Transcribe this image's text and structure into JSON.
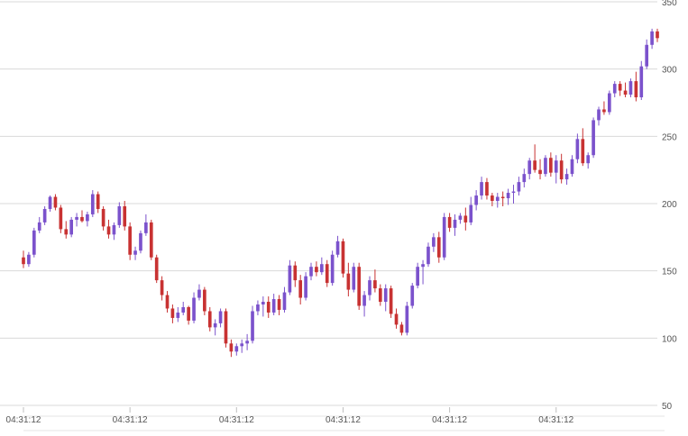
{
  "chart_data": {
    "type": "candlestick",
    "title": "",
    "xlabel": "",
    "ylabel": "",
    "ylim": [
      50,
      350
    ],
    "y_ticks": [
      50,
      100,
      150,
      200,
      250,
      300,
      350
    ],
    "x_tick_labels": [
      "04:31:12",
      "04:31:12",
      "04:31:12",
      "04:31:12",
      "04:31:12",
      "04:31:12"
    ],
    "x_tick_indices": [
      0,
      20,
      40,
      60,
      80,
      100
    ],
    "grid": "horizontal",
    "legend": "none",
    "colors": {
      "up": "#7b52cc",
      "down": "#c83232",
      "grid": "#d9d9d9",
      "axis": "#bfbfbf"
    },
    "series": [
      {
        "candles": [
          [
            160,
            165,
            152,
            155
          ],
          [
            155,
            164,
            153,
            162
          ],
          [
            162,
            182,
            160,
            180
          ],
          [
            180,
            190,
            178,
            186
          ],
          [
            186,
            198,
            184,
            196
          ],
          [
            196,
            206,
            194,
            205
          ],
          [
            205,
            207,
            195,
            197
          ],
          [
            197,
            199,
            178,
            181
          ],
          [
            181,
            187,
            174,
            177
          ],
          [
            177,
            190,
            175,
            188
          ],
          [
            188,
            193,
            183,
            190
          ],
          [
            190,
            195,
            186,
            187
          ],
          [
            187,
            194,
            183,
            192
          ],
          [
            192,
            210,
            190,
            207
          ],
          [
            207,
            209,
            193,
            196
          ],
          [
            196,
            198,
            180,
            183
          ],
          [
            183,
            188,
            174,
            177
          ],
          [
            177,
            186,
            173,
            184
          ],
          [
            184,
            201,
            182,
            198
          ],
          [
            198,
            202,
            180,
            183
          ],
          [
            183,
            186,
            158,
            162
          ],
          [
            162,
            168,
            158,
            165
          ],
          [
            165,
            180,
            163,
            178
          ],
          [
            178,
            192,
            176,
            186
          ],
          [
            186,
            188,
            158,
            160
          ],
          [
            160,
            162,
            141,
            143
          ],
          [
            143,
            146,
            128,
            132
          ],
          [
            132,
            135,
            119,
            122
          ],
          [
            122,
            125,
            111,
            115
          ],
          [
            115,
            123,
            112,
            119
          ],
          [
            119,
            127,
            117,
            123
          ],
          [
            123,
            124,
            110,
            113
          ],
          [
            113,
            134,
            111,
            130
          ],
          [
            130,
            140,
            128,
            136
          ],
          [
            136,
            138,
            117,
            120
          ],
          [
            120,
            123,
            105,
            108
          ],
          [
            108,
            114,
            102,
            111
          ],
          [
            111,
            122,
            108,
            120
          ],
          [
            120,
            122,
            93,
            96
          ],
          [
            96,
            99,
            86,
            90
          ],
          [
            90,
            96,
            87,
            94
          ],
          [
            94,
            99,
            89,
            96
          ],
          [
            96,
            103,
            91,
            98
          ],
          [
            98,
            124,
            96,
            120
          ],
          [
            120,
            128,
            117,
            125
          ],
          [
            125,
            131,
            116,
            127
          ],
          [
            127,
            131,
            115,
            119
          ],
          [
            119,
            133,
            117,
            129
          ],
          [
            129,
            132,
            117,
            121
          ],
          [
            121,
            138,
            119,
            134
          ],
          [
            134,
            158,
            132,
            154
          ],
          [
            154,
            157,
            138,
            143
          ],
          [
            143,
            147,
            125,
            130
          ],
          [
            130,
            149,
            128,
            146
          ],
          [
            146,
            156,
            143,
            153
          ],
          [
            153,
            157,
            146,
            149
          ],
          [
            149,
            160,
            147,
            155
          ],
          [
            155,
            158,
            138,
            141
          ],
          [
            141,
            165,
            139,
            162
          ],
          [
            162,
            176,
            160,
            172
          ],
          [
            172,
            174,
            145,
            148
          ],
          [
            148,
            156,
            131,
            136
          ],
          [
            136,
            156,
            134,
            153
          ],
          [
            153,
            156,
            121,
            124
          ],
          [
            124,
            135,
            116,
            132
          ],
          [
            132,
            146,
            128,
            143
          ],
          [
            143,
            151,
            134,
            137
          ],
          [
            137,
            140,
            124,
            127
          ],
          [
            127,
            140,
            120,
            137
          ],
          [
            137,
            139,
            115,
            118
          ],
          [
            118,
            122,
            107,
            110
          ],
          [
            110,
            112,
            102,
            104
          ],
          [
            104,
            127,
            102,
            124
          ],
          [
            124,
            141,
            122,
            139
          ],
          [
            139,
            156,
            137,
            153
          ],
          [
            153,
            158,
            140,
            155
          ],
          [
            155,
            171,
            153,
            168
          ],
          [
            168,
            178,
            164,
            175
          ],
          [
            175,
            179,
            156,
            160
          ],
          [
            160,
            193,
            158,
            190
          ],
          [
            190,
            193,
            179,
            182
          ],
          [
            182,
            192,
            176,
            188
          ],
          [
            188,
            193,
            185,
            191
          ],
          [
            191,
            197,
            180,
            186
          ],
          [
            186,
            205,
            184,
            199
          ],
          [
            199,
            210,
            195,
            206
          ],
          [
            206,
            220,
            203,
            216
          ],
          [
            216,
            219,
            203,
            206
          ],
          [
            206,
            208,
            198,
            202
          ],
          [
            202,
            208,
            197,
            205
          ],
          [
            205,
            209,
            198,
            204
          ],
          [
            204,
            211,
            199,
            208
          ],
          [
            208,
            214,
            200,
            209
          ],
          [
            209,
            220,
            206,
            216
          ],
          [
            216,
            226,
            212,
            222
          ],
          [
            222,
            234,
            218,
            232
          ],
          [
            232,
            244,
            223,
            225
          ],
          [
            225,
            233,
            218,
            222
          ],
          [
            222,
            236,
            220,
            234
          ],
          [
            234,
            238,
            220,
            223
          ],
          [
            223,
            236,
            215,
            232
          ],
          [
            232,
            237,
            215,
            218
          ],
          [
            218,
            226,
            214,
            222
          ],
          [
            222,
            236,
            220,
            233
          ],
          [
            233,
            252,
            230,
            248
          ],
          [
            248,
            256,
            228,
            230
          ],
          [
            230,
            238,
            226,
            236
          ],
          [
            236,
            264,
            234,
            262
          ],
          [
            262,
            272,
            258,
            270
          ],
          [
            270,
            276,
            266,
            268
          ],
          [
            268,
            284,
            266,
            282
          ],
          [
            282,
            291,
            279,
            289
          ],
          [
            289,
            291,
            280,
            284
          ],
          [
            284,
            290,
            279,
            281
          ],
          [
            281,
            293,
            279,
            291
          ],
          [
            291,
            298,
            276,
            279
          ],
          [
            279,
            306,
            277,
            302
          ],
          [
            302,
            322,
            300,
            318
          ],
          [
            318,
            330,
            315,
            328
          ],
          [
            328,
            330,
            320,
            323
          ]
        ]
      }
    ]
  }
}
